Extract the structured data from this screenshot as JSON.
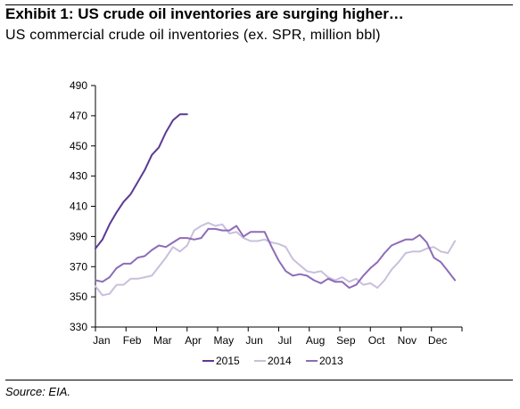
{
  "title": "Exhibit 1: US crude oil inventories are surging higher…",
  "subtitle": "US commercial crude oil inventories (ex. SPR, million bbl)",
  "source": "Source: EIA.",
  "chart_data": {
    "type": "line",
    "title": "",
    "xlabel": "",
    "ylabel": "",
    "x_tick_labels": [
      "Jan",
      "Feb",
      "Mar",
      "Apr",
      "May",
      "Jun",
      "Jul",
      "Aug",
      "Sep",
      "Oct",
      "Nov",
      "Dec"
    ],
    "y_ticks": [
      330,
      350,
      370,
      390,
      410,
      430,
      450,
      470,
      490
    ],
    "ylim": [
      330,
      490
    ],
    "xlim_weeks": [
      1,
      53
    ],
    "grid": false,
    "legend_position": "bottom",
    "series": [
      {
        "name": "2015",
        "color": "#5b3a93",
        "weeks": [
          1,
          2,
          3,
          4,
          5,
          6,
          7,
          8,
          9,
          10,
          11,
          12,
          13,
          14
        ],
        "values": [
          382,
          388,
          398,
          406,
          413,
          418,
          426,
          434,
          444,
          449,
          459,
          467,
          471,
          471
        ]
      },
      {
        "name": "2014",
        "color": "#c9bfdc",
        "weeks": [
          1,
          2,
          3,
          4,
          5,
          6,
          7,
          8,
          9,
          10,
          11,
          12,
          13,
          14,
          15,
          16,
          17,
          18,
          19,
          20,
          21,
          22,
          23,
          24,
          25,
          26,
          27,
          28,
          29,
          30,
          31,
          32,
          33,
          34,
          35,
          36,
          37,
          38,
          39,
          40,
          41,
          42,
          43,
          44,
          45,
          46,
          47,
          48,
          49,
          50,
          51,
          52
        ],
        "values": [
          357,
          351,
          352,
          358,
          358,
          362,
          362,
          363,
          364,
          370,
          376,
          383,
          380,
          384,
          394,
          397,
          399,
          397,
          398,
          392,
          393,
          389,
          387,
          387,
          388,
          386,
          385,
          383,
          375,
          371,
          367,
          366,
          367,
          363,
          361,
          363,
          360,
          362,
          358,
          359,
          356,
          361,
          368,
          373,
          379,
          380,
          380,
          382,
          383,
          380,
          379,
          387
        ]
      },
      {
        "name": "2013",
        "color": "#8e6cb8",
        "weeks": [
          1,
          2,
          3,
          4,
          5,
          6,
          7,
          8,
          9,
          10,
          11,
          12,
          13,
          14,
          15,
          16,
          17,
          18,
          19,
          20,
          21,
          22,
          23,
          24,
          25,
          26,
          27,
          28,
          29,
          30,
          31,
          32,
          33,
          34,
          35,
          36,
          37,
          38,
          39,
          40,
          41,
          42,
          43,
          44,
          45,
          46,
          47,
          48,
          49,
          50,
          51,
          52
        ],
        "values": [
          361,
          360,
          363,
          369,
          372,
          372,
          376,
          377,
          381,
          384,
          383,
          386,
          389,
          389,
          388,
          389,
          395,
          395,
          394,
          394,
          397,
          390,
          393,
          393,
          393,
          383,
          374,
          367,
          364,
          365,
          364,
          361,
          359,
          362,
          360,
          360,
          356,
          358,
          364,
          369,
          373,
          379,
          384,
          386,
          388,
          388,
          391,
          386,
          376,
          373,
          367,
          361
        ]
      }
    ]
  }
}
